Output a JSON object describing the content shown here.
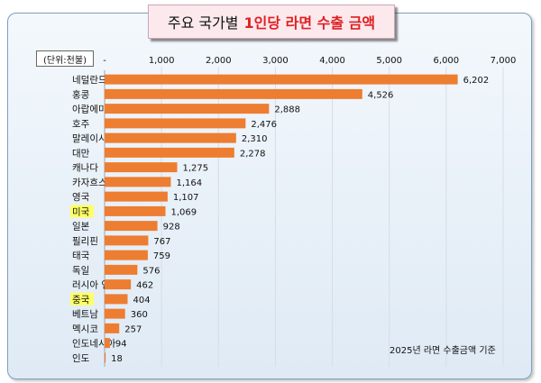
{
  "title": {
    "prefix": "주요 국가별",
    "highlight": "1인당 라면 수출 금액"
  },
  "unit_label": "(단위:천불)",
  "footnote": "2025년 라면 수출금액 기준",
  "colors": {
    "bar": "#ed7d31",
    "highlight": "#ffff66",
    "title_highlight": "#e02020"
  },
  "chart_data": {
    "type": "bar",
    "orientation": "horizontal",
    "categories": [
      "네덜란드",
      "홍콩",
      "아랍에미리트 연합",
      "호주",
      "말레이시아",
      "대만",
      "캐나다",
      "카자흐스탄",
      "영국",
      "미국",
      "일본",
      "필리핀",
      "태국",
      "독일",
      "러시아 연방",
      "중국",
      "베트남",
      "멕시코",
      "인도네시아",
      "인도"
    ],
    "values": [
      6202,
      4526,
      2888,
      2476,
      2310,
      2278,
      1275,
      1164,
      1107,
      1069,
      928,
      767,
      759,
      576,
      462,
      404,
      360,
      257,
      94,
      18
    ],
    "value_labels": [
      "6,202",
      "4,526",
      "2,888",
      "2,476",
      "2,310",
      "2,278",
      "1,275",
      "1,164",
      "1,107",
      "1,069",
      "928",
      "767",
      "759",
      "576",
      "462",
      "404",
      "360",
      "257",
      "94",
      "18"
    ],
    "highlighted_categories": [
      "미국",
      "중국"
    ],
    "x_ticks": [
      0,
      1000,
      2000,
      3000,
      4000,
      5000,
      6000,
      7000
    ],
    "x_tick_labels": [
      "-",
      "1,000",
      "2,000",
      "3,000",
      "4,000",
      "5,000",
      "6,000",
      "7,000"
    ],
    "xlim": [
      0,
      7000
    ],
    "grid": true
  }
}
